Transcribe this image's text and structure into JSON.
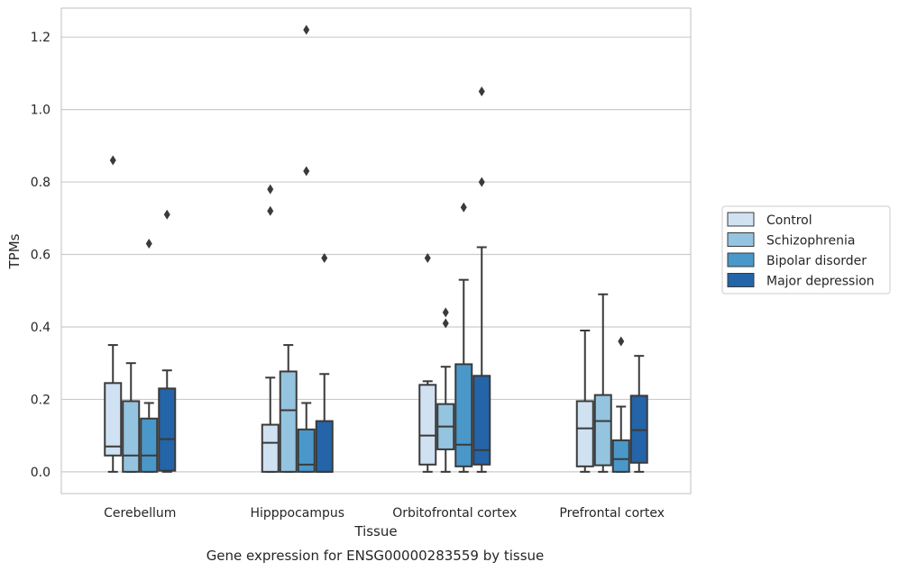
{
  "chart_data": {
    "type": "boxplot",
    "title": "",
    "xlabel": "Tissue",
    "ylabel": "TPMs",
    "caption": "Gene expression for ENSG00000283559 by tissue",
    "ylim": [
      -0.06,
      1.28
    ],
    "yticks": [
      "0.0",
      "0.2",
      "0.4",
      "0.6",
      "0.8",
      "1.0",
      "1.2"
    ],
    "grid": true,
    "legend_position": "right",
    "categories": [
      "Cerebellum",
      "Hipppocampus",
      "Orbitofrontal cortex",
      "Prefrontal cortex"
    ],
    "series": [
      {
        "name": "Control",
        "color": "#d0e1f2",
        "boxes": [
          {
            "whislo": 0.0,
            "q1": 0.045,
            "med": 0.07,
            "q3": 0.245,
            "whishi": 0.35,
            "fliers": [
              0.86
            ]
          },
          {
            "whislo": 0.0,
            "q1": 0.0,
            "med": 0.08,
            "q3": 0.13,
            "whishi": 0.26,
            "fliers": [
              0.72,
              0.78
            ]
          },
          {
            "whislo": 0.0,
            "q1": 0.02,
            "med": 0.1,
            "q3": 0.24,
            "whishi": 0.25,
            "fliers": [
              0.59
            ]
          },
          {
            "whislo": 0.0,
            "q1": 0.015,
            "med": 0.12,
            "q3": 0.195,
            "whishi": 0.39,
            "fliers": []
          }
        ]
      },
      {
        "name": "Schizophrenia",
        "color": "#94c4df",
        "boxes": [
          {
            "whislo": 0.0,
            "q1": 0.0,
            "med": 0.045,
            "q3": 0.195,
            "whishi": 0.3,
            "fliers": []
          },
          {
            "whislo": 0.0,
            "q1": 0.0,
            "med": 0.17,
            "q3": 0.277,
            "whishi": 0.35,
            "fliers": []
          },
          {
            "whislo": 0.0,
            "q1": 0.062,
            "med": 0.125,
            "q3": 0.187,
            "whishi": 0.29,
            "fliers": [
              0.41,
              0.44
            ]
          },
          {
            "whislo": 0.0,
            "q1": 0.018,
            "med": 0.14,
            "q3": 0.212,
            "whishi": 0.49,
            "fliers": []
          }
        ]
      },
      {
        "name": "Bipolar disorder",
        "color": "#4a98c9",
        "boxes": [
          {
            "whislo": 0.0,
            "q1": 0.0,
            "med": 0.045,
            "q3": 0.147,
            "whishi": 0.19,
            "fliers": [
              0.63
            ]
          },
          {
            "whislo": 0.0,
            "q1": 0.0,
            "med": 0.02,
            "q3": 0.117,
            "whishi": 0.19,
            "fliers": [
              1.22,
              0.83
            ]
          },
          {
            "whislo": 0.0,
            "q1": 0.015,
            "med": 0.075,
            "q3": 0.297,
            "whishi": 0.53,
            "fliers": [
              0.73
            ]
          },
          {
            "whislo": 0.0,
            "q1": 0.0,
            "med": 0.035,
            "q3": 0.087,
            "whishi": 0.18,
            "fliers": [
              0.36
            ]
          }
        ]
      },
      {
        "name": "Major depression",
        "color": "#2464a8",
        "boxes": [
          {
            "whislo": 0.0,
            "q1": 0.003,
            "med": 0.09,
            "q3": 0.23,
            "whishi": 0.28,
            "fliers": [
              0.71
            ]
          },
          {
            "whislo": 0.0,
            "q1": 0.0,
            "med": 0.0,
            "q3": 0.14,
            "whishi": 0.27,
            "fliers": [
              0.59
            ]
          },
          {
            "whislo": 0.0,
            "q1": 0.02,
            "med": 0.06,
            "q3": 0.265,
            "whishi": 0.62,
            "fliers": [
              0.8,
              1.05
            ]
          },
          {
            "whislo": 0.0,
            "q1": 0.025,
            "med": 0.115,
            "q3": 0.21,
            "whishi": 0.32,
            "fliers": []
          }
        ]
      }
    ]
  }
}
